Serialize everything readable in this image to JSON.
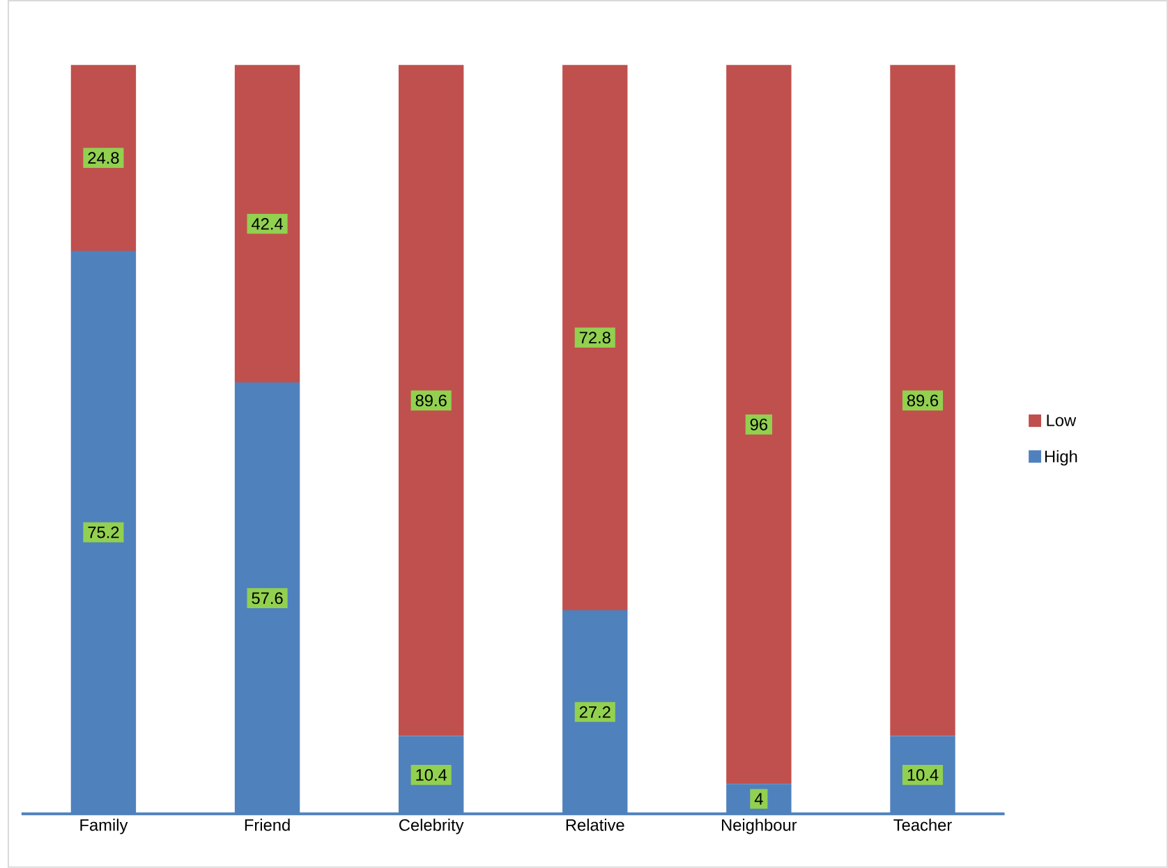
{
  "chart_data": {
    "type": "bar",
    "stacked": true,
    "data_labels": true,
    "legend": "right",
    "categories": [
      "Family",
      "Friend",
      "Celebrity",
      "Relative",
      "Neighbour",
      "Teacher"
    ],
    "series": [
      {
        "name": "High",
        "color": "#4f81bd",
        "values": [
          75.2,
          57.6,
          10.4,
          27.2,
          4,
          10.4
        ]
      },
      {
        "name": "Low",
        "color": "#c0504d",
        "values": [
          24.8,
          42.4,
          89.6,
          72.8,
          96,
          89.6
        ]
      }
    ]
  }
}
